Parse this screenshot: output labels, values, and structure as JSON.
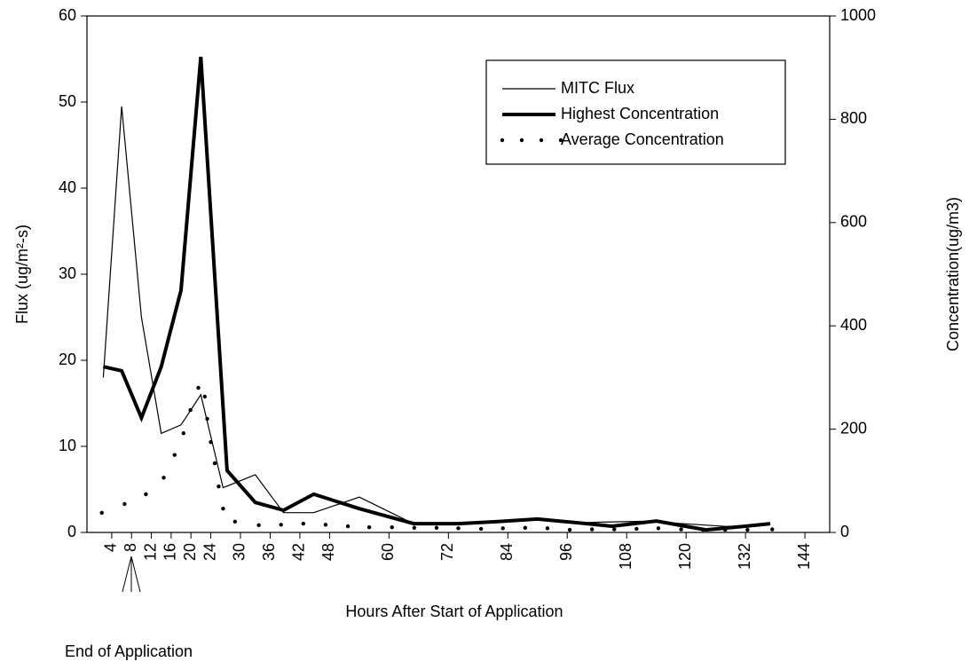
{
  "chart_data": {
    "type": "line",
    "x_label": "Hours After Start of Application",
    "y_label": "Flux (ug/m²-s)",
    "y2_label": "Concentration(ug/m3)",
    "annotation": "End of Application",
    "xlim": [
      -1,
      149
    ],
    "xticks": [
      4,
      8,
      12,
      16,
      20,
      24,
      30,
      36,
      42,
      48,
      60,
      72,
      84,
      96,
      108,
      120,
      132,
      144
    ],
    "ylim": [
      0,
      60
    ],
    "yticks": [
      0,
      10,
      20,
      30,
      40,
      50,
      60
    ],
    "y2lim": [
      0,
      1000
    ],
    "y2ticks": [
      0,
      200,
      400,
      600,
      800,
      1000
    ],
    "grid": false,
    "legend": "upper right",
    "series": [
      {
        "name": "MITC Flux",
        "color": "#000000",
        "linewidth": 1.2,
        "x": [
          2.3,
          6,
          10,
          14,
          18,
          22,
          26.5,
          33,
          38.7,
          44.8,
          54,
          65,
          74,
          78,
          86,
          91,
          97,
          103,
          112,
          120,
          128,
          134,
          137
        ],
        "values": [
          18,
          49.5,
          25,
          11.5,
          12.5,
          16,
          5.2,
          6.7,
          2.3,
          2.3,
          4.1,
          1.0,
          1.0,
          1.2,
          1.3,
          1.5,
          1.1,
          1.2,
          1.3,
          1.0,
          0.7,
          0.8,
          1.0
        ]
      },
      {
        "name": "Highest Concentration",
        "color": "#000000",
        "linewidth": 4,
        "axis": "y2",
        "x": [
          2.3,
          6,
          10,
          14,
          18,
          22,
          27.3,
          33,
          38.7,
          44.8,
          54,
          65,
          74,
          82,
          90,
          100,
          105,
          114,
          124,
          132,
          137
        ],
        "values": [
          321,
          313,
          222,
          321,
          469,
          921,
          120,
          58,
          43,
          74,
          46,
          17,
          17,
          21,
          26,
          17,
          12,
          22,
          5,
          12,
          17
        ]
      },
      {
        "name": "Average Concentration",
        "color": "#000000",
        "style": "dots",
        "axis": "y2",
        "x": [
          2.0,
          6.6,
          10.9,
          14.5,
          16.7,
          18.5,
          19.9,
          21.5,
          22.8,
          23.3,
          24.0,
          24.8,
          25.6,
          26.5,
          28.9,
          33.7,
          38.2,
          42.7,
          47.2,
          51.7,
          56,
          60.6,
          65.1,
          69.6,
          74,
          78.6,
          83,
          87.5,
          92,
          96.5,
          101,
          105.5,
          110,
          114.4,
          119,
          123.4,
          127.9,
          132.4,
          137.4
        ],
        "values": [
          38,
          55,
          74,
          106,
          150,
          192,
          237,
          280,
          263,
          220,
          175,
          134,
          89,
          46,
          21,
          14,
          15,
          17,
          15,
          12,
          10,
          10,
          9,
          9,
          8,
          7,
          8,
          9,
          8,
          5,
          6,
          6,
          7,
          8,
          6,
          5,
          5,
          5,
          6
        ]
      }
    ]
  }
}
